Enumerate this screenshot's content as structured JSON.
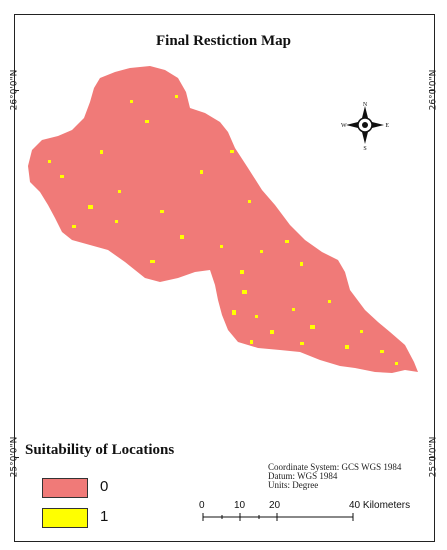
{
  "title": "Final Restiction Map",
  "lat_labels": {
    "north": "26°0'0\"N",
    "south": "25°0'0\"N"
  },
  "north_arrow": {
    "n": "N",
    "s": "S",
    "e": "E",
    "w": "W"
  },
  "legend": {
    "title": "Suitability of Locations",
    "items": [
      {
        "label": "0",
        "color": "#F07A78"
      },
      {
        "label": "1",
        "color": "#FFFF00"
      }
    ]
  },
  "coordinate_info": {
    "line1": "Coordinate System: GCS WGS 1984",
    "line2": "Datum: WGS 1984",
    "line3": "Units: Degree"
  },
  "scale_bar": {
    "labels": [
      "0",
      "10",
      "20",
      "40 Kilometers"
    ]
  },
  "colors": {
    "restricted": "#F07A78",
    "suitable": "#FFFF00",
    "frame": "#222222"
  }
}
